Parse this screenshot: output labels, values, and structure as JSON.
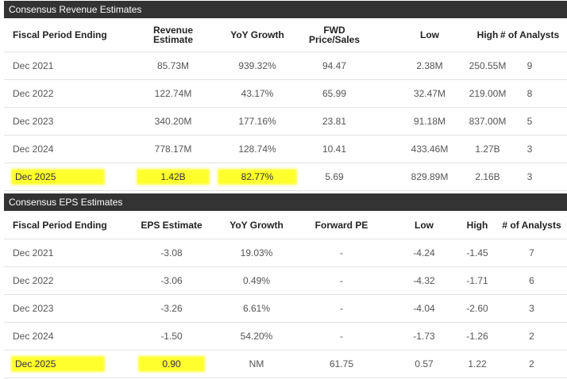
{
  "revenue": {
    "title": "Consensus Revenue Estimates",
    "headers": [
      "Fiscal Period Ending",
      "Revenue\nEstimate",
      "YoY Growth",
      "FWD\nPrice/Sales",
      "Low",
      "High",
      "# of Analysts"
    ],
    "rows": [
      [
        "Dec 2021",
        "85.73M",
        "939.32%",
        "94.47",
        "2.38M",
        "250.55M",
        "9"
      ],
      [
        "Dec 2022",
        "122.74M",
        "43.17%",
        "65.99",
        "32.47M",
        "219.00M",
        "8"
      ],
      [
        "Dec 2023",
        "340.20M",
        "177.16%",
        "23.81",
        "91.18M",
        "837.00M",
        "5"
      ],
      [
        "Dec 2024",
        "778.17M",
        "128.74%",
        "10.41",
        "433.46M",
        "1.27B",
        "3"
      ],
      [
        "Dec 2025",
        "1.42B",
        "82.77%",
        "5.69",
        "829.89M",
        "2.16B",
        "3"
      ]
    ],
    "highlight_color": "#ffff2e"
  },
  "eps": {
    "title": "Consensus EPS Estimates",
    "headers": [
      "Fiscal Period Ending",
      "EPS Estimate",
      "YoY Growth",
      "Forward PE",
      "Low",
      "High",
      "# of Analysts"
    ],
    "rows": [
      [
        "Dec 2021",
        "-3.08",
        "19.03%",
        "-",
        "-4.24",
        "-1.45",
        "7"
      ],
      [
        "Dec 2022",
        "-3.06",
        "0.49%",
        "-",
        "-4.32",
        "-1.71",
        "6"
      ],
      [
        "Dec 2023",
        "-3.26",
        "6.61%",
        "-",
        "-4.04",
        "-2.60",
        "3"
      ],
      [
        "Dec 2024",
        "-1.50",
        "54.20%",
        "-",
        "-1.73",
        "-1.26",
        "2"
      ],
      [
        "Dec 2025",
        "0.90",
        "NM",
        "61.75",
        "0.57",
        "1.22",
        "2"
      ]
    ],
    "highlight_color": "#ffff2e"
  }
}
